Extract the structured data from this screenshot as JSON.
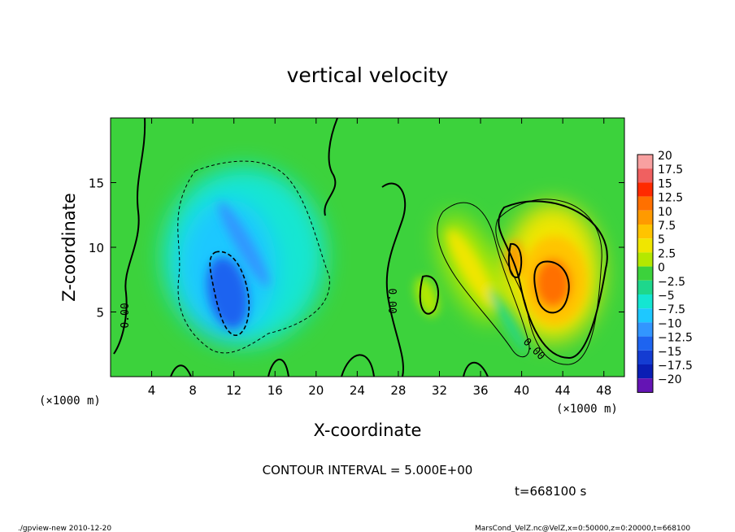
{
  "chart_data": {
    "type": "heatmap",
    "title": "vertical velocity",
    "xlabel": "X-coordinate",
    "ylabel": "Z-coordinate",
    "x_unit_left": "(×1000 m)",
    "x_unit_right": "(×1000 m)",
    "xlim": [
      0,
      50
    ],
    "ylim": [
      0,
      20
    ],
    "xticks": [
      4,
      8,
      12,
      16,
      20,
      24,
      28,
      32,
      36,
      40,
      44,
      48
    ],
    "yticks": [
      5,
      10,
      15
    ],
    "colorbar": {
      "labels": [
        "20",
        "17.5",
        "15",
        "12.5",
        "10",
        "7.5",
        "5",
        "2.5",
        "0",
        "−2.5",
        "−5",
        "−7.5",
        "−10",
        "−12.5",
        "−15",
        "−17.5",
        "−20"
      ],
      "colors": [
        "#f8a0a0",
        "#f06060",
        "#ff2a00",
        "#ff7000",
        "#ff9a00",
        "#ffc400",
        "#f0e600",
        "#b4e800",
        "#3cd23c",
        "#1ed78c",
        "#14e6d2",
        "#1ec8ff",
        "#3296ff",
        "#1e64f0",
        "#143cd2",
        "#0a1eb4",
        "#6414b4"
      ]
    },
    "contour_labels": [
      "0.00",
      "0.00",
      "0.00"
    ],
    "contour_interval_text": "CONTOUR INTERVAL = 5.000E+00",
    "time_text": "t=668100 s",
    "features": [
      {
        "sign": "negative",
        "x_center": 12,
        "z_center": 7,
        "min_value": -12.5
      },
      {
        "sign": "positive",
        "x_center": 43,
        "z_center": 7,
        "max_value": 12.5
      },
      {
        "sign": "positive",
        "x_center": 34,
        "z_center": 8,
        "max_value": 7.5
      }
    ]
  },
  "footer": {
    "left": "./gpview-new   2010-12-20",
    "right": "MarsCond_VelZ.nc@VelZ,x=0:50000,z=0:20000,t=668100"
  }
}
